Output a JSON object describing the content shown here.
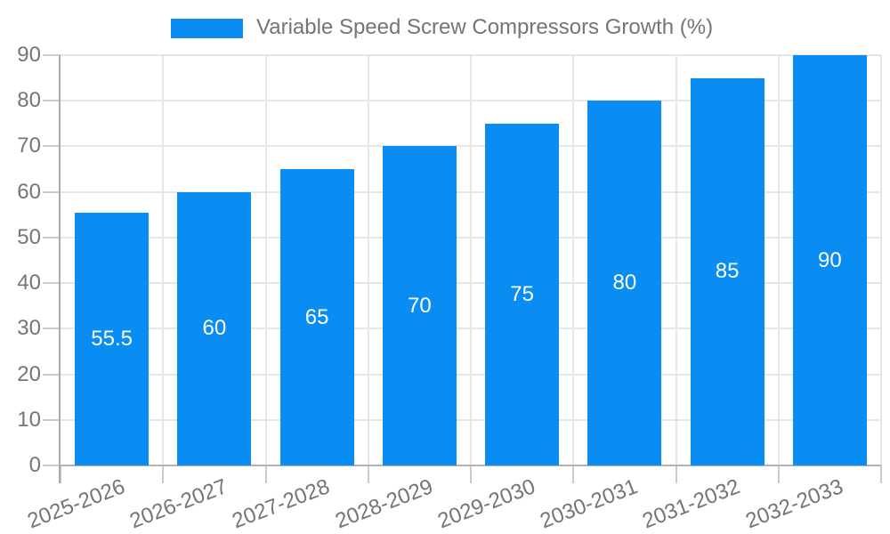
{
  "legend": {
    "label": "Variable Speed Screw Compressors Growth (%)"
  },
  "chart_data": {
    "type": "bar",
    "title": "Variable Speed Screw Compressors Growth (%)",
    "categories": [
      "2025-2026",
      "2026-2027",
      "2027-2028",
      "2028-2029",
      "2029-2030",
      "2030-2031",
      "2031-2032",
      "2032-2033"
    ],
    "values": [
      55.5,
      60,
      65,
      70,
      75,
      80,
      85,
      90
    ],
    "value_labels": [
      "55.5",
      "60",
      "65",
      "70",
      "75",
      "80",
      "85",
      "90"
    ],
    "xlabel": "",
    "ylabel": "",
    "y_ticks": [
      0,
      10,
      20,
      30,
      40,
      50,
      60,
      70,
      80,
      90
    ],
    "ylim": [
      0,
      90
    ],
    "grid": true,
    "legend_position": "top-center",
    "bar_color": "#0a8df3",
    "bar_label_color": "#ffffff",
    "axis_text_color": "#757575",
    "grid_color": "#e6e6e6",
    "axis_line_color": "#a9a9a9",
    "tick_color": "#cbcbcb"
  }
}
